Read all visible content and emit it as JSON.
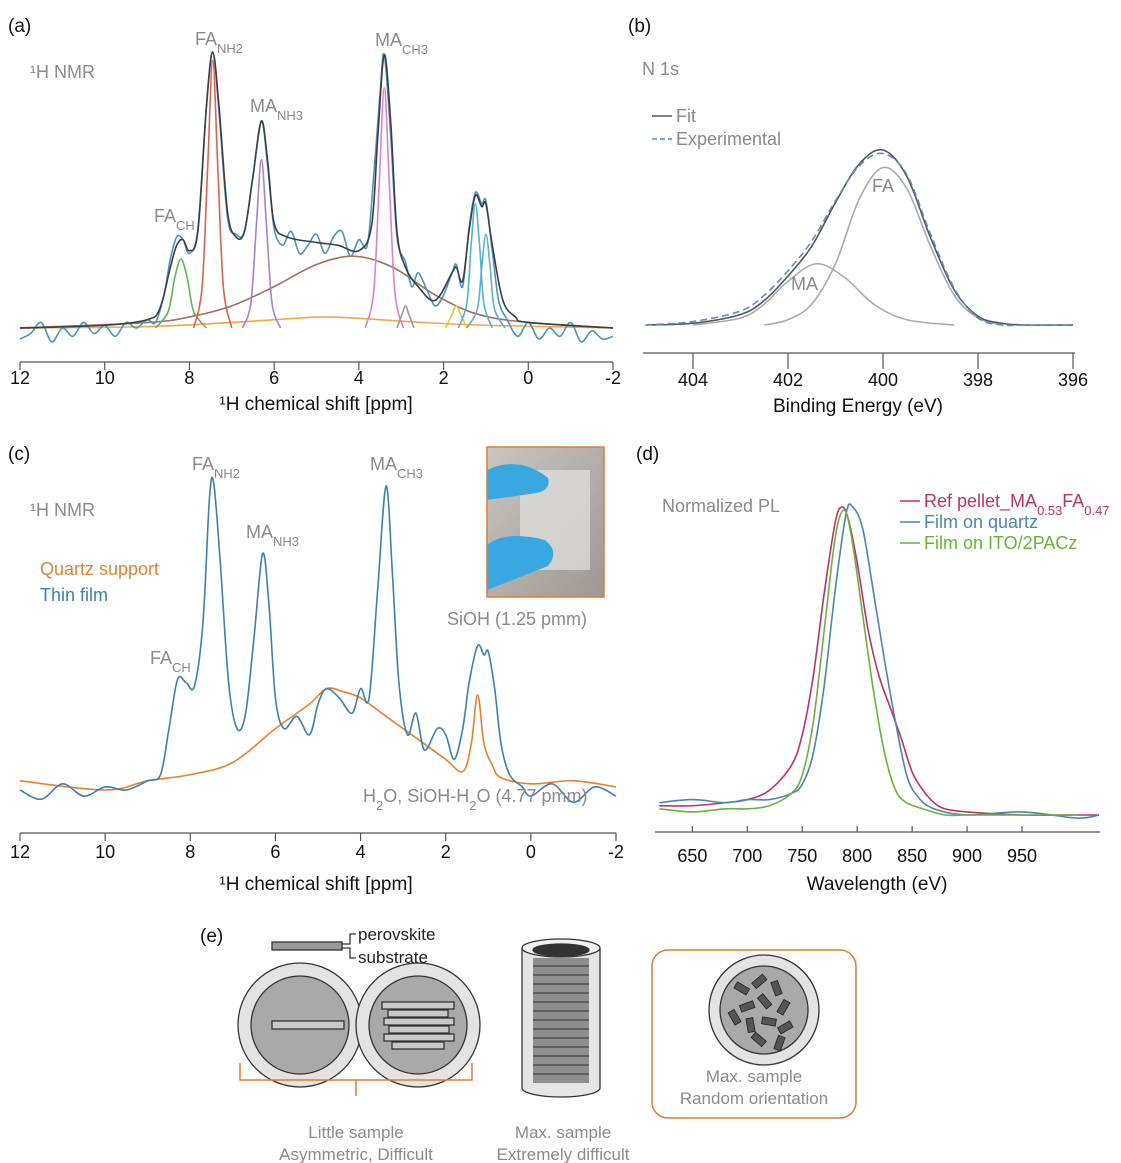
{
  "chart_data": [
    {
      "type": "line",
      "panel": "(a)",
      "xlabel": "¹H chemical shift [ppm]",
      "xlim": [
        12,
        -2
      ],
      "xticks": [
        12,
        10,
        8,
        6,
        4,
        2,
        0,
        -2
      ],
      "ylim": [
        -0.1,
        1.05
      ],
      "annotations": [
        [
          "¹H NMR"
        ],
        [
          "FA",
          "NH2"
        ],
        [
          "MA",
          "NH3"
        ],
        [
          "MA",
          "CH3"
        ],
        [
          "FA",
          "CH"
        ]
      ],
      "series": [
        {
          "color": "#f0a94a",
          "x": [
            12,
            9,
            7,
            5.5,
            4.8,
            4,
            2.5,
            1,
            -2
          ],
          "values": [
            0,
            0.005,
            0.02,
            0.035,
            0.04,
            0.035,
            0.02,
            0.01,
            0
          ]
        },
        {
          "color": "#a0705f",
          "x": [
            12,
            9,
            8,
            7,
            6,
            5,
            4.1,
            3.2,
            2.2,
            1.2,
            0,
            -2
          ],
          "values": [
            0,
            0.02,
            0.04,
            0.08,
            0.15,
            0.23,
            0.26,
            0.22,
            0.12,
            0.05,
            0.02,
            0
          ]
        },
        {
          "color": "#5fb55a",
          "x": [
            8.8,
            8.5,
            8.35,
            8.2,
            8.05,
            7.9,
            7.6
          ],
          "values": [
            0,
            0.06,
            0.18,
            0.25,
            0.18,
            0.06,
            0
          ]
        },
        {
          "color": "#e0604f",
          "x": [
            7.9,
            7.7,
            7.57,
            7.45,
            7.33,
            7.2,
            7.0
          ],
          "values": [
            0,
            0.15,
            0.58,
            0.97,
            0.58,
            0.15,
            0
          ]
        },
        {
          "color": "#a982c4",
          "x": [
            6.75,
            6.55,
            6.42,
            6.3,
            6.18,
            6.05,
            5.85
          ],
          "values": [
            0,
            0.09,
            0.37,
            0.61,
            0.37,
            0.09,
            0
          ]
        },
        {
          "color": "#e27fc4",
          "x": [
            3.85,
            3.65,
            3.52,
            3.4,
            3.28,
            3.15,
            2.95
          ],
          "values": [
            0,
            0.13,
            0.52,
            0.87,
            0.52,
            0.13,
            0
          ]
        },
        {
          "color": "#9a9a9a",
          "x": [
            3.1,
            2.98,
            2.9,
            2.82,
            2.7
          ],
          "values": [
            0,
            0.05,
            0.08,
            0.05,
            0
          ]
        },
        {
          "color": "#d8cc3a",
          "x": [
            1.95,
            1.8,
            1.7,
            1.6,
            1.45
          ],
          "values": [
            0,
            0.05,
            0.08,
            0.05,
            0
          ]
        },
        {
          "color": "#4ab8cc",
          "x": [
            1.65,
            1.45,
            1.35,
            1.25,
            1.15,
            1.05,
            0.85
          ],
          "values": [
            0,
            0.09,
            0.3,
            0.45,
            0.3,
            0.09,
            0
          ]
        },
        {
          "color": "#5ab0d6",
          "x": [
            1.45,
            1.2,
            1.1,
            1.0,
            0.9,
            0.8,
            0.55
          ],
          "values": [
            0,
            0.07,
            0.22,
            0.34,
            0.22,
            0.07,
            0
          ]
        },
        {
          "color": "#4f93bd",
          "x": [
            12,
            11.75,
            11.5,
            11.25,
            11,
            10.75,
            10.5,
            10.25,
            10,
            9.75,
            9.5,
            9.25,
            9,
            8.8,
            8.6,
            8.45,
            8.3,
            8.15,
            8.0,
            7.8,
            7.6,
            7.45,
            7.3,
            7.1,
            6.9,
            6.7,
            6.5,
            6.3,
            6.15,
            6.0,
            5.8,
            5.6,
            5.4,
            5.2,
            5.0,
            4.8,
            4.6,
            4.4,
            4.2,
            4.0,
            3.8,
            3.65,
            3.5,
            3.4,
            3.25,
            3.1,
            2.9,
            2.75,
            2.6,
            2.4,
            2.2,
            2.0,
            1.8,
            1.7,
            1.55,
            1.4,
            1.25,
            1.1,
            1.0,
            0.85,
            0.7,
            0.5,
            0.25,
            0,
            -0.25,
            -0.5,
            -0.75,
            -1,
            -1.25,
            -1.5,
            -1.75,
            -2
          ],
          "values": [
            -0.04,
            -0.02,
            0.02,
            -0.05,
            0.0,
            -0.03,
            0.02,
            -0.02,
            0.01,
            -0.03,
            0.02,
            0.0,
            0.03,
            0.02,
            0.12,
            0.25,
            0.33,
            0.32,
            0.27,
            0.36,
            0.8,
            1.0,
            0.78,
            0.4,
            0.34,
            0.35,
            0.55,
            0.75,
            0.58,
            0.36,
            0.3,
            0.35,
            0.27,
            0.3,
            0.34,
            0.27,
            0.33,
            0.35,
            0.26,
            0.32,
            0.3,
            0.55,
            0.85,
            0.99,
            0.7,
            0.33,
            0.24,
            0.15,
            0.2,
            0.14,
            0.08,
            0.12,
            0.2,
            0.23,
            0.15,
            0.36,
            0.49,
            0.45,
            0.46,
            0.28,
            0.1,
            0.03,
            -0.03,
            0.02,
            -0.04,
            0.0,
            -0.03,
            0.02,
            -0.05,
            -0.01,
            -0.04,
            -0.03
          ]
        },
        {
          "color": "#3a3f44",
          "x": [
            12,
            10,
            9,
            8.7,
            8.45,
            8.3,
            8.15,
            8.0,
            7.8,
            7.6,
            7.45,
            7.3,
            7.1,
            6.9,
            6.7,
            6.5,
            6.3,
            6.15,
            6.0,
            5.7,
            5.0,
            4.5,
            4.0,
            3.7,
            3.55,
            3.4,
            3.25,
            3.1,
            2.9,
            2.6,
            2.2,
            1.8,
            1.7,
            1.55,
            1.4,
            1.25,
            1.1,
            1.0,
            0.85,
            0.6,
            0.3,
            0,
            -2
          ],
          "values": [
            0.0,
            0.01,
            0.03,
            0.07,
            0.22,
            0.3,
            0.32,
            0.28,
            0.35,
            0.8,
            1.0,
            0.8,
            0.42,
            0.33,
            0.35,
            0.55,
            0.75,
            0.6,
            0.38,
            0.33,
            0.31,
            0.3,
            0.28,
            0.37,
            0.7,
            0.99,
            0.75,
            0.35,
            0.22,
            0.15,
            0.1,
            0.2,
            0.22,
            0.17,
            0.35,
            0.48,
            0.44,
            0.45,
            0.3,
            0.1,
            0.04,
            0.02,
            0.0
          ]
        }
      ]
    },
    {
      "type": "line",
      "panel": "(b)",
      "xlabel": "Binding Energy (eV)",
      "xlim": [
        405,
        396
      ],
      "xticks": [
        404,
        402,
        400,
        398,
        396
      ],
      "ylim": [
        -0.05,
        1.05
      ],
      "legend": "upper left",
      "annotations": [
        [
          "N 1s"
        ],
        [
          "MA"
        ],
        [
          "FA"
        ]
      ],
      "series": [
        {
          "color": "#aaaaaa",
          "x": [
            404,
            403,
            402.5,
            402,
            401.4,
            400.8,
            400.2,
            399.5,
            398.5
          ],
          "values": [
            0,
            0.04,
            0.12,
            0.25,
            0.35,
            0.27,
            0.12,
            0.03,
            0
          ]
        },
        {
          "color": "#aaaaaa",
          "x": [
            402.5,
            402,
            401.5,
            401,
            400.5,
            400,
            399.5,
            399,
            398.5,
            398,
            397.5
          ],
          "values": [
            0,
            0.03,
            0.12,
            0.35,
            0.72,
            0.9,
            0.78,
            0.45,
            0.17,
            0.04,
            0
          ]
        },
        {
          "name": "Fit",
          "color": "#555555",
          "x": [
            405,
            404,
            403,
            402.5,
            402,
            401.5,
            401,
            400.5,
            400,
            399.5,
            399,
            398.5,
            398,
            397.5,
            397,
            396
          ],
          "values": [
            0,
            0.01,
            0.06,
            0.14,
            0.28,
            0.45,
            0.7,
            0.92,
            1.0,
            0.85,
            0.5,
            0.2,
            0.05,
            0.01,
            0,
            0
          ]
        },
        {
          "name": "Experimental",
          "color": "#5b8fc0",
          "dashed": true,
          "x": [
            405,
            404,
            403,
            402.5,
            402,
            401.5,
            401,
            400.5,
            400,
            399.5,
            399,
            398.5,
            398,
            397.5,
            397,
            396
          ],
          "values": [
            0,
            0.02,
            0.08,
            0.17,
            0.31,
            0.48,
            0.71,
            0.91,
            0.98,
            0.86,
            0.52,
            0.21,
            0.04,
            0.0,
            0,
            0
          ]
        }
      ]
    },
    {
      "type": "line",
      "panel": "(c)",
      "xlabel": "¹H chemical shift [ppm]",
      "xlim": [
        12,
        -2
      ],
      "xticks": [
        12,
        10,
        8,
        6,
        4,
        2,
        0,
        -2
      ],
      "ylim": [
        -0.1,
        1.05
      ],
      "legend": "upper left",
      "annotations": [
        [
          "¹H NMR"
        ],
        [
          "FA",
          "NH2"
        ],
        [
          "MA",
          "NH3"
        ],
        [
          "MA",
          "CH3"
        ],
        [
          "FA",
          "CH"
        ],
        [
          "SiOH (1.25 pmm)"
        ],
        [
          "H",
          "2",
          "O, SiOH-H",
          "2",
          "O (4.77 pmm)"
        ]
      ],
      "series": [
        {
          "name": "Quartz support",
          "color": "#e7812f",
          "x": [
            12,
            10,
            9,
            8,
            7,
            6,
            5.2,
            4.8,
            4.4,
            4,
            3.5,
            3,
            2.5,
            2,
            1.6,
            1.4,
            1.25,
            1.1,
            0.9,
            0.7,
            0,
            -1,
            -2
          ],
          "values": [
            0.03,
            0.0,
            0.03,
            0.05,
            0.09,
            0.2,
            0.28,
            0.33,
            0.32,
            0.3,
            0.25,
            0.2,
            0.15,
            0.1,
            0.06,
            0.15,
            0.31,
            0.15,
            0.08,
            0.04,
            0.02,
            0.03,
            0.01
          ]
        },
        {
          "name": "Thin film",
          "color": "#3d7fb0",
          "x": [
            12,
            11.5,
            11,
            10.5,
            10,
            9.5,
            9,
            8.7,
            8.5,
            8.3,
            8.1,
            7.9,
            7.7,
            7.55,
            7.45,
            7.3,
            7.1,
            6.9,
            6.7,
            6.5,
            6.3,
            6.15,
            6.0,
            5.8,
            5.5,
            5.2,
            5.0,
            4.8,
            4.5,
            4.2,
            4.0,
            3.8,
            3.6,
            3.4,
            3.25,
            3.1,
            2.9,
            2.7,
            2.5,
            2.2,
            2.0,
            1.8,
            1.6,
            1.45,
            1.25,
            1.1,
            1.0,
            0.85,
            0.7,
            0.5,
            0.2,
            0,
            -0.5,
            -1,
            -1.5,
            -2
          ],
          "values": [
            0,
            -0.03,
            0.02,
            -0.02,
            0.01,
            0.0,
            0.03,
            0.05,
            0.2,
            0.36,
            0.35,
            0.34,
            0.55,
            0.95,
            1.0,
            0.75,
            0.35,
            0.2,
            0.25,
            0.5,
            0.77,
            0.6,
            0.3,
            0.2,
            0.24,
            0.18,
            0.28,
            0.33,
            0.3,
            0.25,
            0.33,
            0.3,
            0.65,
            0.99,
            0.7,
            0.35,
            0.18,
            0.25,
            0.13,
            0.2,
            0.18,
            0.1,
            0.2,
            0.35,
            0.47,
            0.44,
            0.45,
            0.33,
            0.15,
            0.05,
            0.01,
            -0.02,
            0.02,
            -0.04,
            0.01,
            -0.02
          ]
        }
      ]
    },
    {
      "type": "line",
      "panel": "(d)",
      "xlabel": "Wavelength (eV)",
      "xlim": [
        616,
        1021
      ],
      "xticks": [
        650,
        700,
        750,
        800,
        850,
        900,
        950
      ],
      "ylim": [
        -0.05,
        1.05
      ],
      "legend": "upper right",
      "annotations": [
        [
          "Normalized PL"
        ]
      ],
      "series": [
        {
          "name": "Ref pellet_MA0.53FA0.47",
          "color": "#c0306a",
          "x": [
            620,
            650,
            680,
            700,
            720,
            740,
            750,
            760,
            770,
            780,
            786,
            792,
            800,
            810,
            820,
            830,
            840,
            850,
            860,
            870,
            880,
            900,
            950,
            1000,
            1020
          ],
          "values": [
            0.03,
            0.03,
            0.04,
            0.05,
            0.08,
            0.16,
            0.26,
            0.45,
            0.72,
            0.95,
            1.0,
            0.96,
            0.82,
            0.6,
            0.45,
            0.35,
            0.25,
            0.14,
            0.08,
            0.04,
            0.02,
            0.01,
            0.0,
            0.0,
            0.0
          ]
        },
        {
          "name": "Film on quartz",
          "color": "#4a86b0",
          "x": [
            620,
            650,
            680,
            700,
            720,
            740,
            750,
            760,
            770,
            780,
            790,
            796,
            805,
            815,
            825,
            835,
            845,
            855,
            870,
            900,
            950,
            1000,
            1020
          ],
          "values": [
            0.04,
            0.05,
            0.04,
            0.05,
            0.05,
            0.07,
            0.1,
            0.2,
            0.42,
            0.73,
            0.98,
            1.0,
            0.93,
            0.72,
            0.5,
            0.3,
            0.13,
            0.06,
            0.02,
            0.0,
            0.01,
            -0.01,
            0.0
          ]
        },
        {
          "name": "Film on ITO/2PACz",
          "color": "#6ab23a",
          "x": [
            620,
            650,
            680,
            700,
            720,
            740,
            750,
            760,
            770,
            780,
            788,
            795,
            805,
            815,
            825,
            835,
            845,
            860,
            880,
            900,
            950,
            1000
          ],
          "values": [
            0.02,
            0.01,
            0.02,
            0.02,
            0.03,
            0.07,
            0.13,
            0.3,
            0.6,
            0.9,
            0.99,
            0.9,
            0.65,
            0.4,
            0.2,
            0.08,
            0.04,
            0.02,
            0.0,
            0.0,
            0.0,
            0.0
          ]
        }
      ]
    }
  ],
  "diagram": {
    "panel": "(e)",
    "labels": [
      "perovskite",
      "substrate",
      "Little sample",
      "Asymmetric, Difficult",
      "Max. sample",
      "Extremely difficult",
      "Max. sample",
      "Random orientation"
    ]
  }
}
